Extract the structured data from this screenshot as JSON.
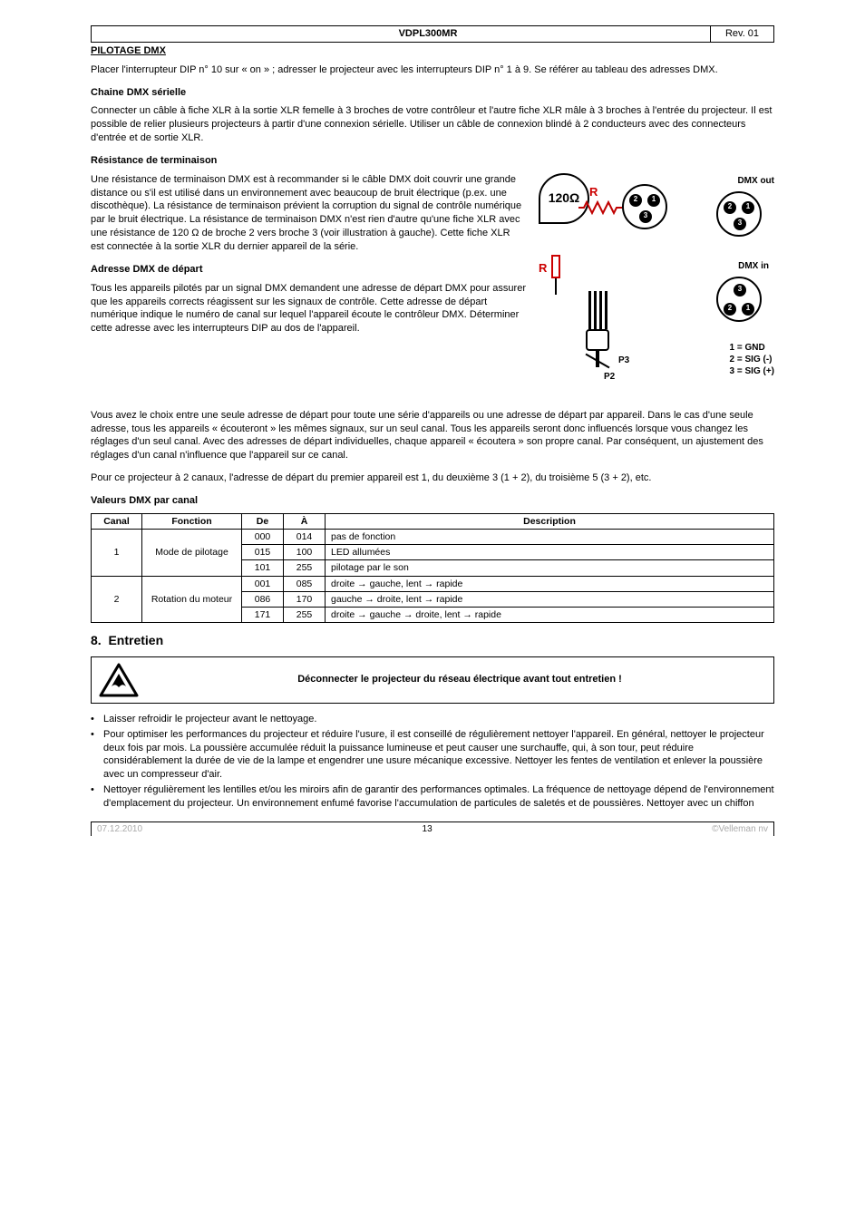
{
  "header": {
    "product": "VDPL300MR",
    "rev": "Rev. 01"
  },
  "pilotage": {
    "title": "PILOTAGE DMX",
    "intro": "Placer l'interrupteur DIP n° 10 sur « on » ; adresser le projecteur avec les interrupteurs DIP n° 1 à 9. Se référer au tableau des adresses DMX.",
    "chain": {
      "title": "Chaine DMX sérielle",
      "body": "Connecter un câble à fiche XLR à la sortie XLR femelle à 3 broches de votre contrôleur et l'autre fiche XLR mâle à 3 broches à l'entrée du projecteur. Il est possible de relier plusieurs projecteurs à partir d'une connexion sérielle. Utiliser un câble de connexion blindé à 2 conducteurs avec des connecteurs d'entrée et de sortie XLR."
    },
    "terminator": {
      "title": "Résistance de terminaison",
      "body": "Une résistance de terminaison DMX est à recommander si le câble DMX doit couvrir une grande distance ou s'il est utilisé dans un environnement avec beaucoup de bruit électrique (p.ex. une discothèque). La résistance de terminaison prévient la corruption du signal de contrôle numérique par le bruit électrique. La résistance de terminaison DMX n'est rien d'autre qu'une fiche XLR avec une résistance de 120 Ω de broche 2 vers broche 3 (voir illustration à gauche). Cette fiche XLR est connectée à la sortie XLR du dernier appareil de la série."
    },
    "address": {
      "title": "Adresse DMX de départ",
      "body1": "Tous les appareils pilotés par un signal DMX demandent une adresse de départ DMX pour assurer que les appareils corrects réagissent sur les signaux de contrôle. Cette adresse de départ numérique indique le numéro de canal sur lequel l'appareil écoute le contrôleur DMX. Déterminer cette adresse avec les interrupteurs DIP au dos de l'appareil.",
      "body2": "Vous avez le choix entre une seule adresse de départ pour toute une série d'appareils ou une adresse de départ par appareil. Dans le cas d'une seule adresse, tous les appareils « écouteront » les mêmes signaux, sur un seul canal. Tous les appareils seront donc influencés lorsque vous changez les réglages d'un seul canal. Avec des adresses de départ individuelles, chaque appareil « écoutera » son propre canal. Par conséquent, un ajustement des réglages d'un canal n'influence que l'appareil sur ce canal.",
      "body3": "Pour ce projecteur à 2 canaux, l'adresse de départ du premier appareil est 1, du deuxième 3 (1 + 2), du troisième 5 (3 + 2), etc."
    },
    "diagram": {
      "ohm": "120Ω",
      "r": "R",
      "rcap": "R",
      "dmx_out": "DMX out",
      "dmx_in": "DMX in",
      "p2": "P2",
      "p3": "P3",
      "legend1": "1 = GND",
      "legend2": "2 = SIG (-)",
      "legend3": "3 = SIG (+)",
      "colors": {
        "red": "#c00000",
        "black": "#000000"
      }
    }
  },
  "dmx_table": {
    "title": "Valeurs DMX par canal",
    "headers": [
      "Canal",
      "Fonction",
      "De",
      "À",
      "Description"
    ],
    "rows": [
      {
        "canal": "1",
        "canal_rowspan": 3,
        "fonction": "Mode de pilotage",
        "fn_rowspan": 3,
        "de": "000",
        "a": "014",
        "desc": "pas de fonction"
      },
      {
        "de": "015",
        "a": "100",
        "desc": "LED allumées"
      },
      {
        "de": "101",
        "a": "255",
        "desc": "pilotage par le son"
      },
      {
        "canal": "2",
        "canal_rowspan": 3,
        "fonction": "Rotation du moteur",
        "fn_rowspan": 3,
        "de": "001",
        "a": "085",
        "desc": "droite → gauche, lent → rapide"
      },
      {
        "de": "086",
        "a": "170",
        "desc": "gauche → droite, lent → rapide"
      },
      {
        "de": "171",
        "a": "255",
        "desc": "droite → gauche → droite, lent → rapide"
      }
    ]
  },
  "entretien": {
    "num": "8.",
    "title": "Entretien",
    "warning": "Déconnecter le projecteur du réseau électrique avant tout entretien !",
    "bullets": [
      "Laisser refroidir le projecteur avant le nettoyage.",
      "Pour optimiser les performances du projecteur et réduire l'usure, il est conseillé de régulièrement nettoyer l'appareil. En général, nettoyer le projecteur deux fois par mois. La poussière accumulée réduit la puissance lumineuse et peut causer une surchauffe, qui, à son tour, peut réduire considérablement la durée de vie de la lampe et engendrer une usure mécanique excessive. Nettoyer les fentes de ventilation et enlever la poussière avec un compresseur d'air.",
      "Nettoyer régulièrement les lentilles et/ou les miroirs afin de garantir des performances optimales. La fréquence de nettoyage dépend de l'environnement d'emplacement du projecteur. Un environnement enfumé favorise l'accumulation de particules de saletés et de poussières. Nettoyer avec un chiffon"
    ]
  },
  "footer": {
    "date": "07.12.2010",
    "page": "13",
    "copy": "©Velleman nv"
  }
}
